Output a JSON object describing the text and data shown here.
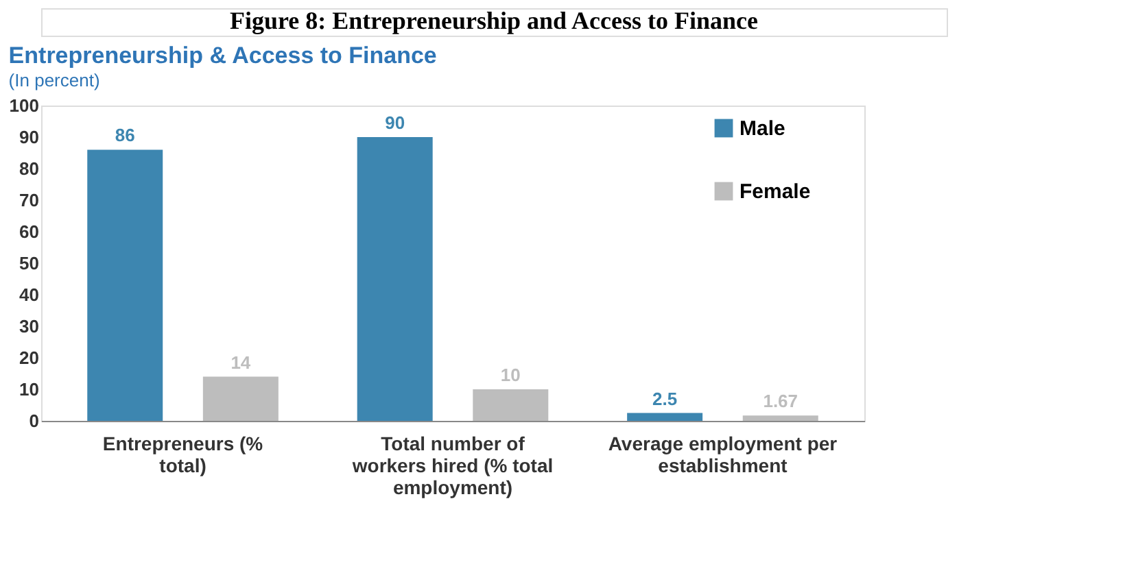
{
  "chart_data": {
    "type": "bar",
    "title": "Entrepreneurship & Access to Finance",
    "subtitle": "(In percent)",
    "annotations": [
      "Figure 8: Entrepreneurship and Access to Finance"
    ],
    "categories": [
      "Entrepreneurs (% total)",
      "Total number of workers hired (% total employment)",
      "Average employment per establishment"
    ],
    "series": [
      {
        "name": "Male",
        "color": "#3d86b0",
        "values": [
          86,
          90,
          2.5
        ]
      },
      {
        "name": "Female",
        "color": "#bdbdbd",
        "values": [
          14,
          10,
          1.67
        ]
      }
    ],
    "ylim": [
      0,
      100
    ],
    "yticks": [
      0,
      10,
      20,
      30,
      40,
      50,
      60,
      70,
      80,
      90,
      100
    ],
    "grid": false,
    "legend": "top right",
    "data_labels": true
  }
}
